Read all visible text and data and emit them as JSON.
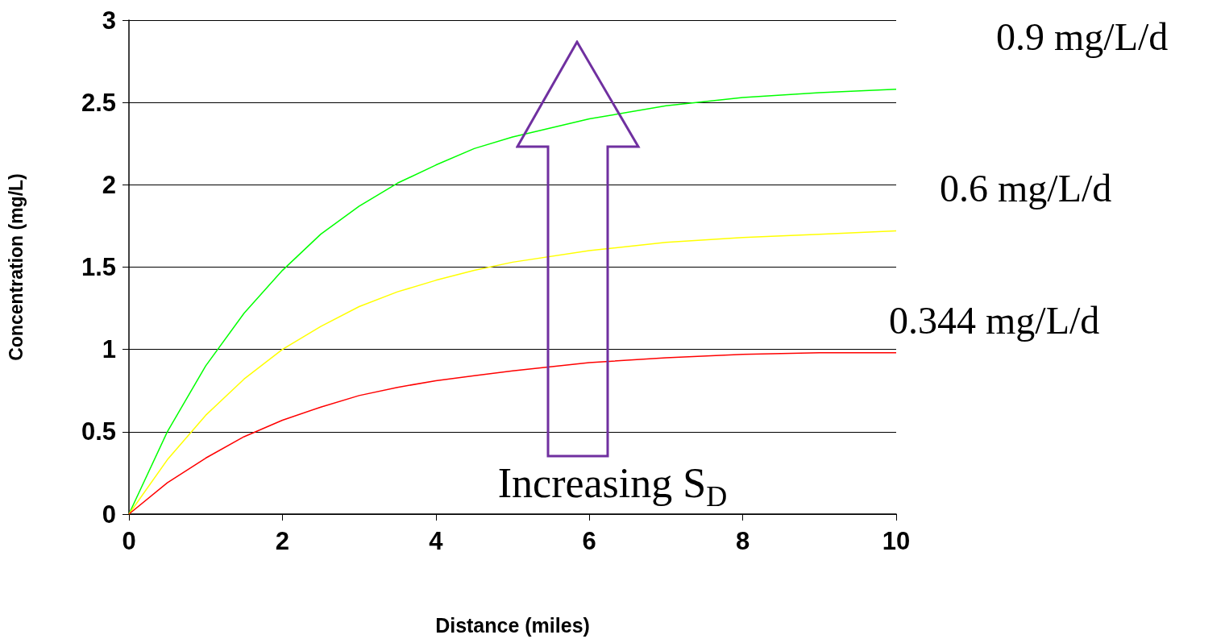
{
  "chart_data": {
    "type": "line",
    "xlabel": "Distance (miles)",
    "ylabel": "Concentration (mg/L)",
    "x": [
      0,
      0.5,
      1,
      1.5,
      2,
      2.5,
      3,
      3.5,
      4,
      4.5,
      5,
      6,
      7,
      8,
      9,
      10
    ],
    "series": [
      {
        "name": "0.9 mg/L/d",
        "color": "#00ff00",
        "values": [
          0,
          0.5,
          0.9,
          1.22,
          1.48,
          1.7,
          1.87,
          2.01,
          2.12,
          2.22,
          2.29,
          2.4,
          2.48,
          2.53,
          2.56,
          2.58
        ]
      },
      {
        "name": "0.6 mg/L/d",
        "color": "#ffff00",
        "values": [
          0,
          0.33,
          0.6,
          0.82,
          1.0,
          1.14,
          1.26,
          1.35,
          1.42,
          1.48,
          1.53,
          1.6,
          1.65,
          1.68,
          1.7,
          1.72
        ]
      },
      {
        "name": "0.344 mg/L/d",
        "color": "#ff0000",
        "values": [
          0,
          0.19,
          0.34,
          0.47,
          0.57,
          0.65,
          0.72,
          0.77,
          0.81,
          0.84,
          0.87,
          0.92,
          0.95,
          0.97,
          0.98,
          0.98
        ]
      }
    ],
    "xlim": [
      0,
      10
    ],
    "xticks": [
      0,
      2,
      4,
      6,
      8,
      10
    ],
    "ylim": [
      0,
      3
    ],
    "yticks": [
      0,
      0.5,
      1,
      1.5,
      2,
      2.5,
      3
    ],
    "grid": "y",
    "legend": false,
    "marker": "none",
    "line_style": "solid",
    "annotations": [
      "Increasing S$_{D}$"
    ]
  }
}
